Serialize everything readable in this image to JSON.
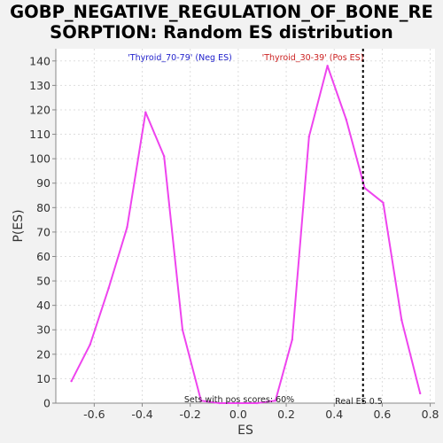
{
  "chart_data": {
    "type": "line",
    "title_line1": "GOBP_NEGATIVE_REGULATION_OF_BONE_RE",
    "title_line2": "SORPTION: Random ES distribution",
    "xlabel": "ES",
    "ylabel": "P(ES)",
    "xlim": [
      -0.76,
      0.82
    ],
    "ylim": [
      0,
      145
    ],
    "xticks": [
      -0.6,
      -0.4,
      -0.2,
      0.0,
      0.2,
      0.4,
      0.6,
      0.8
    ],
    "xtick_labels": [
      "-0.6",
      "-0.4",
      "-0.2",
      "0.0",
      "0.2",
      "0.4",
      "0.6",
      "0.8"
    ],
    "yticks": [
      0,
      10,
      20,
      30,
      40,
      50,
      60,
      70,
      80,
      90,
      100,
      110,
      120,
      130,
      140
    ],
    "ytick_labels": [
      "0",
      "10",
      "20",
      "30",
      "40",
      "50",
      "60",
      "70",
      "80",
      "90",
      "100",
      "110",
      "120",
      "130",
      "140"
    ],
    "grid": true,
    "series": [
      {
        "color": "#ee44ee",
        "x": [
          -0.695,
          -0.617,
          -0.54,
          -0.463,
          -0.386,
          -0.309,
          -0.232,
          -0.155,
          -0.078,
          0.0,
          0.078,
          0.155,
          0.225,
          0.295,
          0.372,
          0.45,
          0.527,
          0.604,
          0.681,
          0.758
        ],
        "y": [
          9,
          24,
          47,
          72,
          119,
          101,
          30,
          1,
          0,
          0,
          0,
          1,
          26,
          109,
          138,
          116,
          88,
          82,
          34,
          4
        ]
      }
    ],
    "legend": {
      "neg_label": "'Thyroid_70-79' (Neg ES)",
      "neg_color": "#2222cc",
      "pos_label": "'Thyroid_30-39' (Pos ES)",
      "pos_color": "#cc2222"
    },
    "real_es": 0.52,
    "real_es_label": "Real ES 0.5",
    "pos_scores_label": "Sets with pos scores: 60%"
  }
}
